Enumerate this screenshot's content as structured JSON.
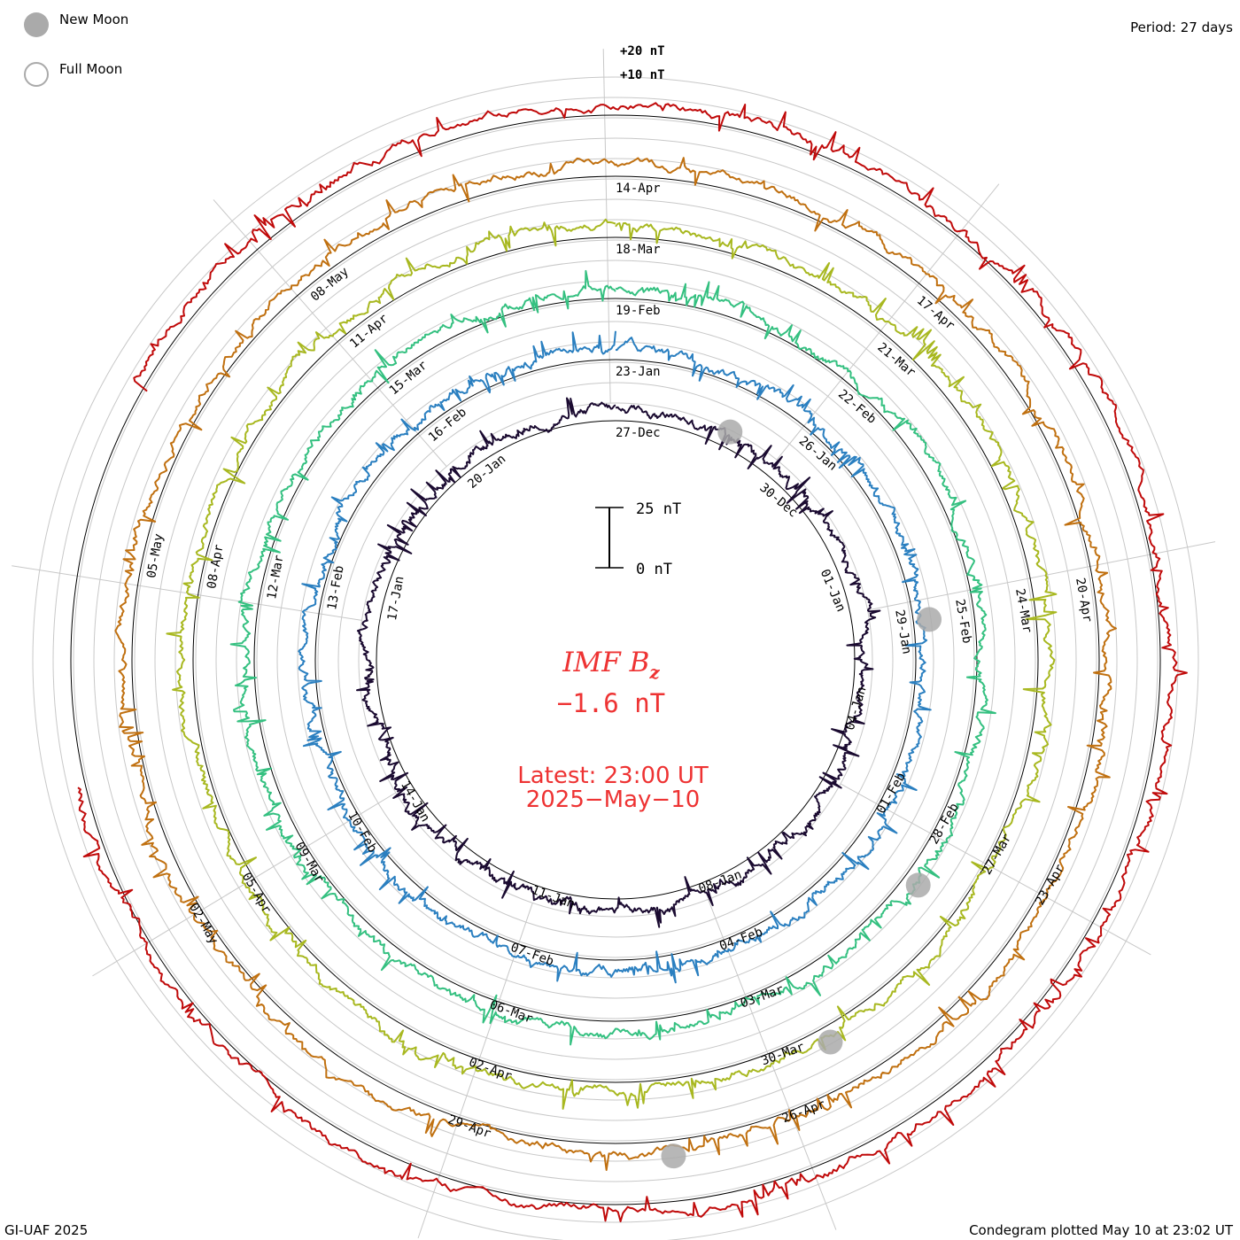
{
  "legend": {
    "new_moon_label": "New Moon",
    "full_moon_label": "Full Moon",
    "new_moon_color": "#aaaaaa",
    "full_moon_color": "#aaaaaa"
  },
  "period_label": "Period: 27 days",
  "scale_labels": {
    "plus20": "+20 nT",
    "plus10": "+10 nT"
  },
  "scale_bar": {
    "top_label": "25 nT",
    "bottom_label": "0 nT"
  },
  "center": {
    "title_main": "IMF B",
    "title_sub": "z",
    "value": "−1.6 nT",
    "latest_line1": "Latest: 23:00 UT",
    "latest_line2": "2025−May−10",
    "text_color": "#ee3333"
  },
  "footer": {
    "left": "GI-UAF 2025",
    "right": "Condegram plotted May 10 at 23:02 UT"
  },
  "chart_data": {
    "type": "line",
    "description_free": true,
    "period_days": 27,
    "units": "nT",
    "rings": [
      {
        "color": "#1a0a30",
        "labels": [
          "27-Dec",
          "30-Dec",
          "01-Jan",
          "04-Jan",
          "08-Jan",
          "11-Jan",
          "14-Jan",
          "17-Jan",
          "20-Jan"
        ],
        "label_days": [
          0,
          3,
          5,
          8,
          12,
          15,
          18,
          21,
          24
        ]
      },
      {
        "color": "#2f2aa8",
        "labels": [
          "23-Jan",
          "26-Jan",
          "29-Jan",
          "01-Feb",
          "04-Feb",
          "07-Feb",
          "10-Feb",
          "13-Feb",
          "16-Feb"
        ],
        "label_days": [
          0,
          3,
          6,
          9,
          12,
          15,
          18,
          21,
          24
        ]
      },
      {
        "color": "#2aa8b0",
        "labels": [
          "19-Feb",
          "22-Feb",
          "25-Feb",
          "28-Feb",
          "03-Mar",
          "06-Mar",
          "09-Mar",
          "12-Mar",
          "15-Mar"
        ],
        "label_days": [
          0,
          3,
          6,
          9,
          12,
          15,
          18,
          21,
          24
        ]
      },
      {
        "color": "#6cc035",
        "labels": [
          "18-Mar",
          "21-Mar",
          "24-Mar",
          "27-Mar",
          "30-Mar",
          "02-Apr",
          "05-Apr",
          "08-Apr",
          "11-Apr"
        ],
        "label_days": [
          0,
          3,
          6,
          9,
          12,
          15,
          18,
          21,
          24
        ]
      },
      {
        "color": "#b8a018",
        "labels": [
          "14-Apr",
          "17-Apr",
          "20-Apr",
          "23-Apr",
          "26-Apr",
          "29-Apr",
          "02-May",
          "05-May",
          "08-May"
        ],
        "label_days": [
          0,
          3,
          6,
          9,
          12,
          15,
          18,
          21,
          24
        ]
      },
      {
        "color": "#c03010",
        "labels": [],
        "label_days": []
      }
    ],
    "ring_colors_gradient": [
      "#1a0a30",
      "#2f2aa8",
      "#2a7fc0",
      "#2aa8b0",
      "#34c080",
      "#6cc035",
      "#a8b820",
      "#b8a018",
      "#c07010",
      "#c03010",
      "#c00a0a"
    ],
    "moon_markers": [
      {
        "type": "new",
        "date": "29-Dec"
      },
      {
        "type": "new",
        "date": "29-Jan"
      },
      {
        "type": "new",
        "date": "28-Feb"
      },
      {
        "type": "new",
        "date": "29-Mar"
      },
      {
        "type": "new",
        "date": "27-Apr"
      }
    ],
    "latest_value": -1.6,
    "latest_time": "2025-May-10 23:00 UT"
  }
}
